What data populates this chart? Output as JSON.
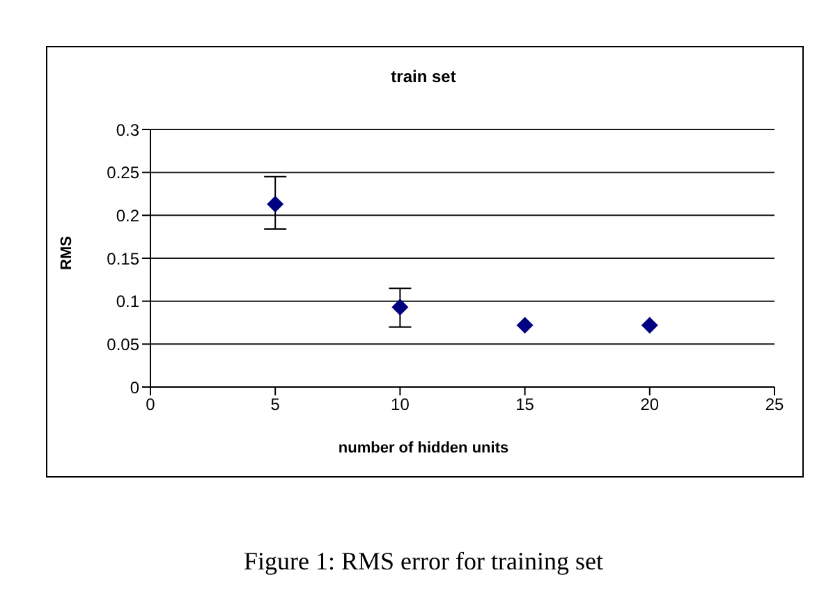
{
  "chart_data": {
    "type": "scatter",
    "title": "train set",
    "xlabel": "number of hidden units",
    "ylabel": "RMS",
    "x": [
      5,
      10,
      15,
      20
    ],
    "values": [
      0.213,
      0.093,
      0.072,
      0.072
    ],
    "errors": [
      [
        0.184,
        0.245
      ],
      [
        0.07,
        0.115
      ],
      null,
      null
    ],
    "color": "#000080",
    "marker": "diamond",
    "xlim": [
      0,
      25
    ],
    "xticks": [
      0,
      5,
      10,
      15,
      20,
      25
    ],
    "ylim": [
      0,
      0.3
    ],
    "yticks": [
      0,
      0.05,
      0.1,
      0.15,
      0.2,
      0.25,
      0.3
    ],
    "grid": "y",
    "legend": false,
    "annotations": [
      "Figure 1: RMS error for training set"
    ]
  }
}
